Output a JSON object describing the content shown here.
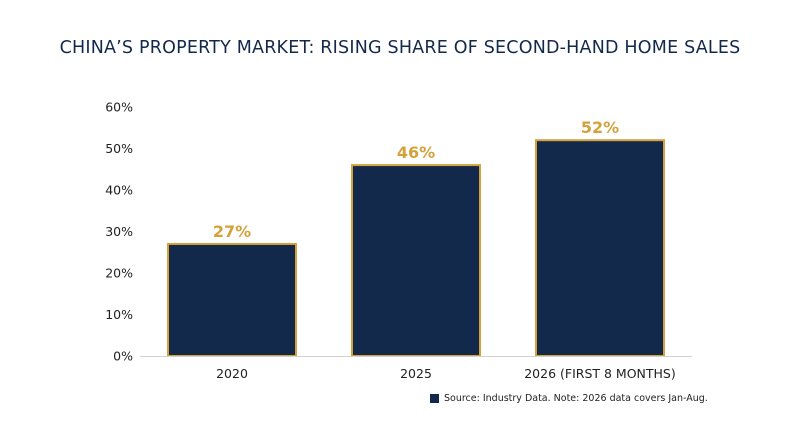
{
  "chart_data": {
    "type": "bar",
    "title": "CHINA’S PROPERTY MARKET: RISING SHARE OF SECOND-HAND HOME SALES",
    "categories": [
      "2020",
      "2025",
      "2026 (FIRST 8 MONTHS)"
    ],
    "values": [
      27,
      46,
      52
    ],
    "data_labels": [
      "27%",
      "46%",
      "52%"
    ],
    "ylim": [
      0,
      60
    ],
    "yticks": [
      "0%",
      "10%",
      "20%",
      "30%",
      "40%",
      "50%",
      "60%"
    ],
    "grid": false,
    "legend": "bottom-right",
    "legend_text": "Source: Industry Data. Note: 2026 data covers Jan-Aug.",
    "colors": {
      "bar_fill": "#13294b",
      "bar_border": "#d4a23a",
      "label": "#d4a23a"
    }
  }
}
